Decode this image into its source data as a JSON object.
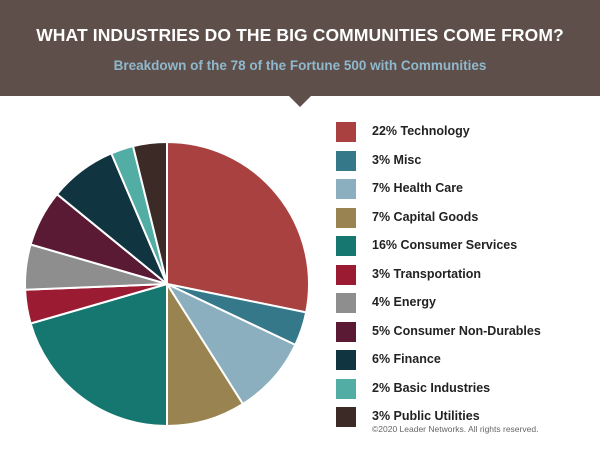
{
  "header": {
    "title": "WHAT INDUSTRIES DO THE BIG COMMUNITIES COME FROM?",
    "subtitle": "Breakdown of the 78 of the Fortune 500 with Communities",
    "background_color": "#5e4f4b",
    "subtitle_color": "#8fb8cc"
  },
  "chart_data": {
    "type": "pie",
    "title": "WHAT INDUSTRIES DO THE BIG COMMUNITIES COME FROM?",
    "subtitle": "Breakdown of the 78 of the Fortune 500 with Communities",
    "legend_position": "right",
    "start_angle_deg": 0,
    "direction": "clockwise",
    "slices": [
      {
        "label": "22% Technology",
        "value": 22,
        "color": "#a8413f"
      },
      {
        "label": "3% Misc",
        "value": 3,
        "color": "#34788a"
      },
      {
        "label": "7% Health Care",
        "value": 7,
        "color": "#8bafbe"
      },
      {
        "label": "7% Capital Goods",
        "value": 7,
        "color": "#998350"
      },
      {
        "label": "16% Consumer Services",
        "value": 16,
        "color": "#167670"
      },
      {
        "label": "3% Transportation",
        "value": 3,
        "color": "#9b1b33"
      },
      {
        "label": "4% Energy",
        "value": 4,
        "color": "#8e8e8e"
      },
      {
        "label": "5% Consumer Non-Durables",
        "value": 5,
        "color": "#5b1a33"
      },
      {
        "label": "6% Finance",
        "value": 6,
        "color": "#113441"
      },
      {
        "label": "2% Basic Industries",
        "value": 2,
        "color": "#52ada5"
      },
      {
        "label": "3% Public Utilities",
        "value": 3,
        "color": "#3b2a25"
      }
    ]
  },
  "footer": {
    "copyright": "©2020 Leader Networks. All rights reserved."
  }
}
